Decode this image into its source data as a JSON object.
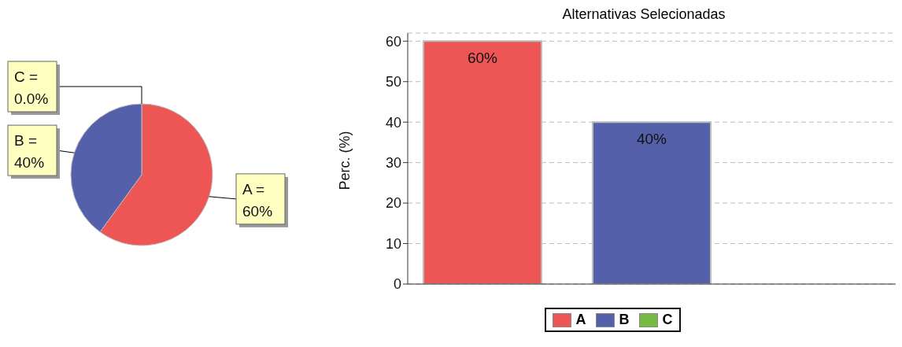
{
  "chart_data": [
    {
      "type": "pie",
      "categories": [
        "A =",
        "B =",
        "C ="
      ],
      "values": [
        60,
        40,
        0
      ],
      "colors": [
        "#ee5555",
        "#5560aa",
        "#77bb44"
      ],
      "value_labels": [
        "60%",
        "40%",
        "0.0%"
      ],
      "legend": false
    },
    {
      "type": "bar",
      "title": "Alternativas Selecionadas",
      "ylabel": "Perc. (%)",
      "categories": [
        null
      ],
      "series": [
        {
          "name": "A",
          "color": "#ee5555",
          "values": [
            60
          ],
          "value_labels": [
            "60%"
          ]
        },
        {
          "name": "B",
          "color": "#5560aa",
          "values": [
            40
          ],
          "value_labels": [
            "40%"
          ]
        },
        {
          "name": "C",
          "color": "#77bb44",
          "values": [
            0
          ],
          "value_labels": [
            null
          ]
        }
      ],
      "ylim": [
        0,
        62
      ],
      "yticks": [
        0,
        10,
        20,
        30,
        40,
        50,
        60
      ],
      "grid": "y",
      "legend": "bottom",
      "tick_labels": "y"
    }
  ]
}
